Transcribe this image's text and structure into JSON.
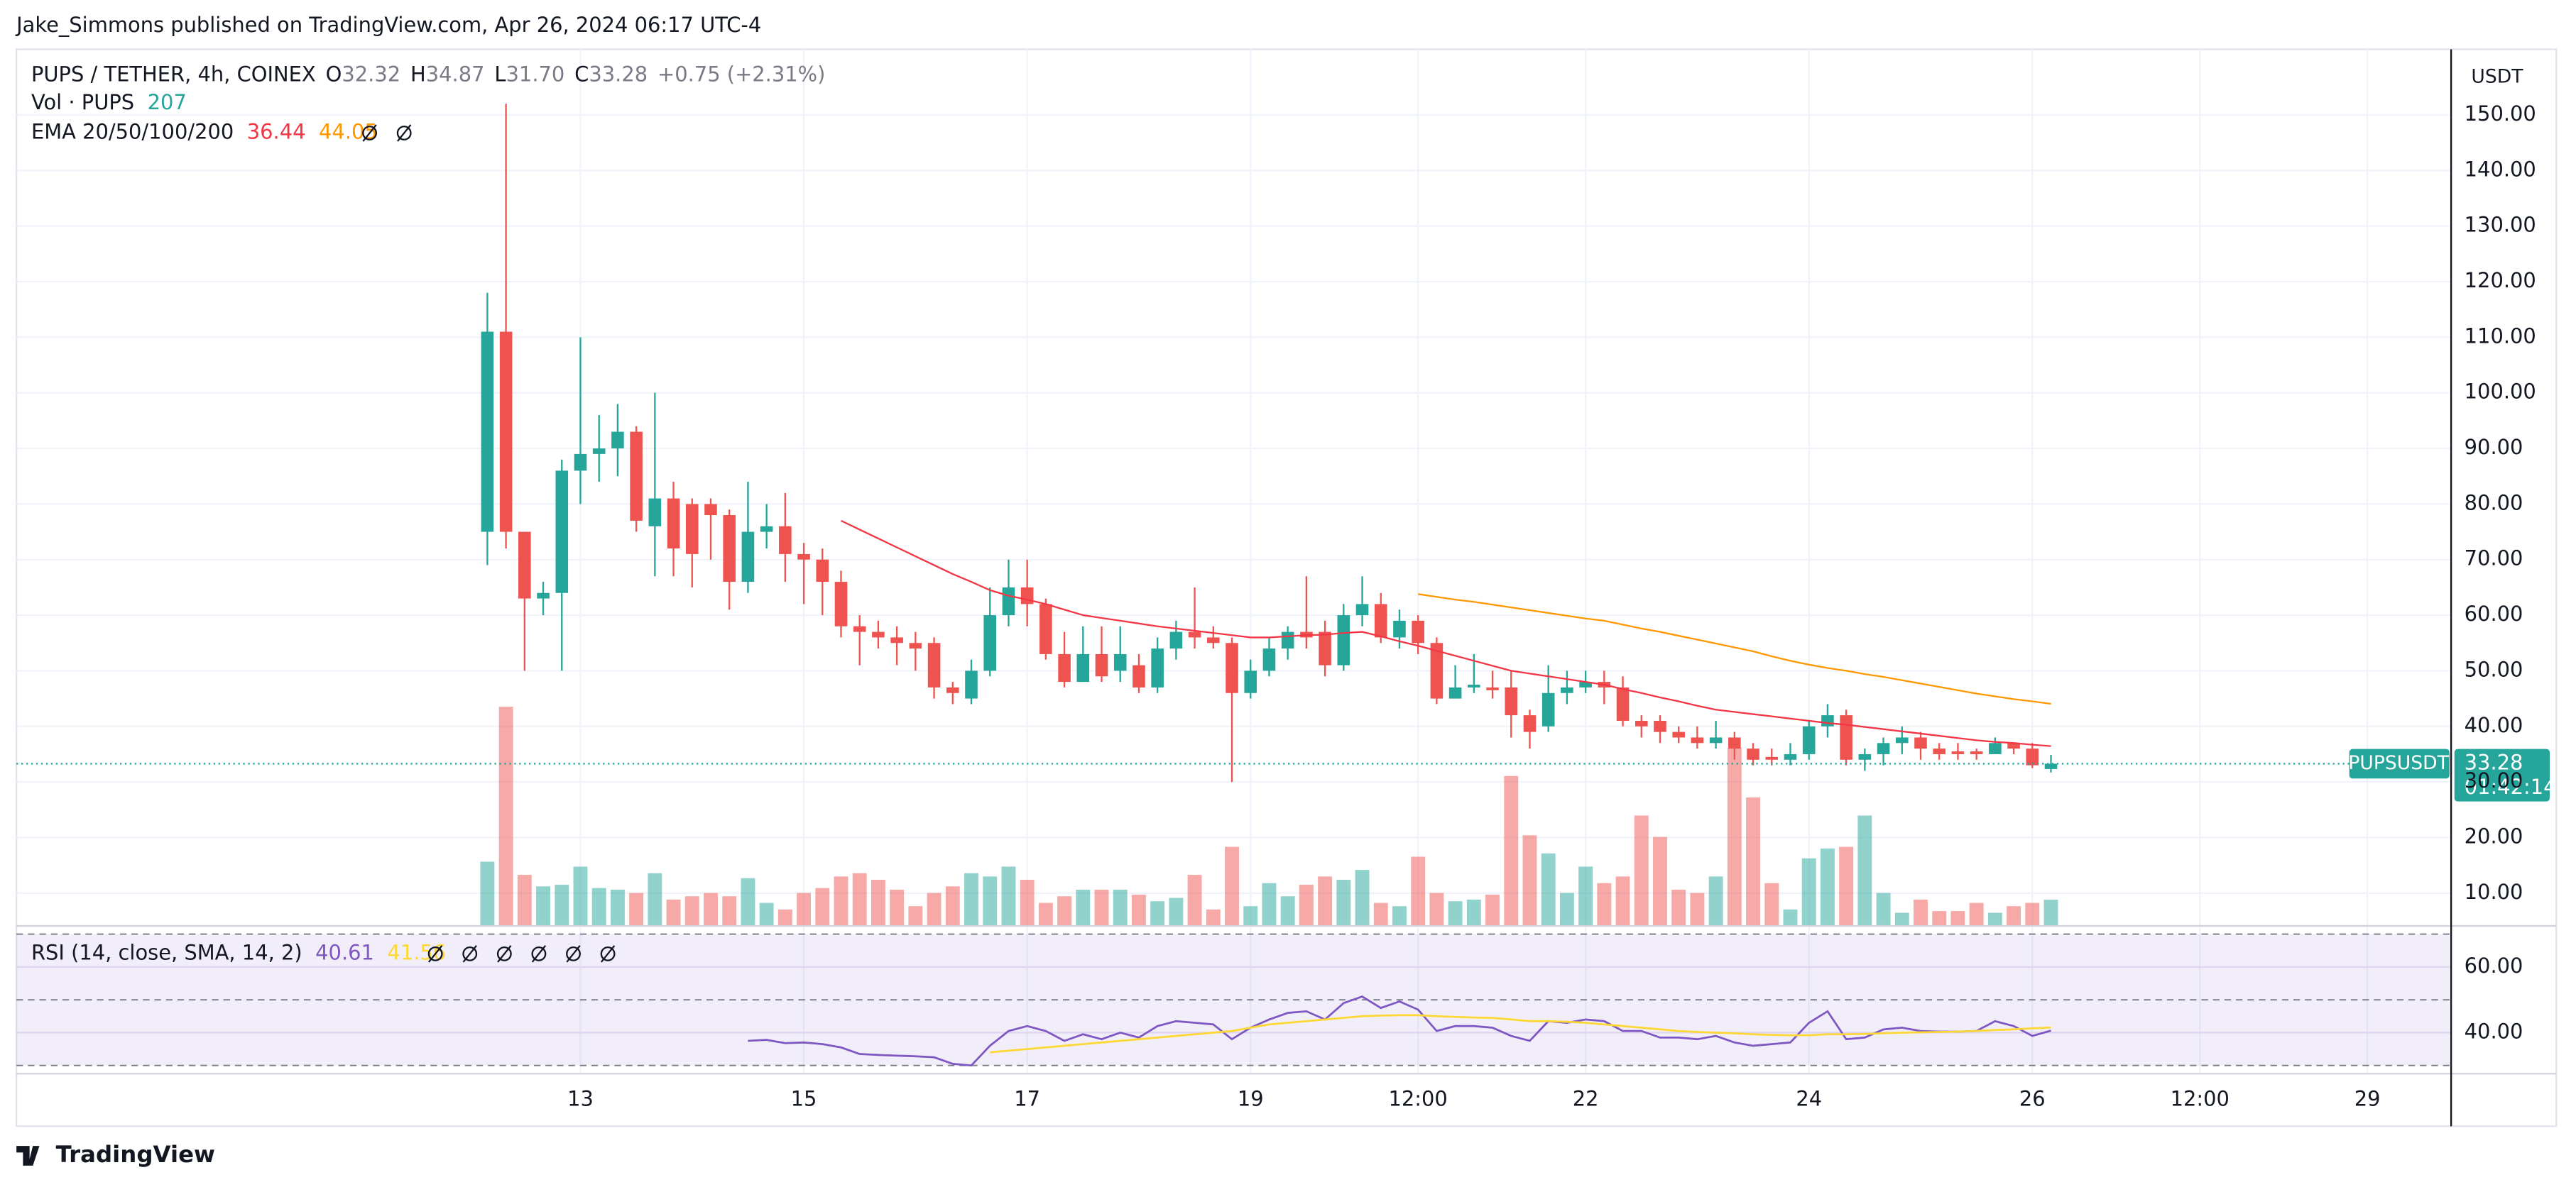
{
  "header": "Jake_Simmons published on TradingView.com, Apr 26, 2024 06:17 UTC-4",
  "footer": "TradingView",
  "chart_data": {
    "type": "candlestick",
    "title": "PUPS / TETHER, 4h, COINEX",
    "legend": {
      "o": "O",
      "open": "32.32",
      "h": "H",
      "high": "34.87",
      "l": "L",
      "low": "31.70",
      "c": "C",
      "close": "33.28",
      "change": "+0.75 (+2.31%)"
    },
    "currency": "USDT",
    "symbol": "PUPSUSDT",
    "countdown": "01:42:14",
    "up_color": "#26a69a",
    "down_color": "#ef5350",
    "open": [
      75,
      111,
      75,
      63,
      64,
      86,
      89,
      90,
      93,
      76,
      81,
      80,
      80,
      78,
      66,
      75,
      76,
      71,
      70,
      66,
      58,
      57,
      56,
      55,
      55,
      47,
      45,
      50,
      60,
      65,
      62,
      53,
      48,
      53,
      50,
      51,
      47,
      54,
      57,
      56,
      55,
      46,
      50,
      54,
      57,
      57,
      51,
      60,
      62,
      56,
      59,
      55,
      45,
      47,
      47,
      47,
      42,
      40,
      46,
      47,
      48,
      47,
      41,
      41,
      39,
      38,
      37,
      38,
      36,
      34.5,
      34,
      35,
      40,
      42,
      34,
      35,
      37,
      38,
      36,
      35.5,
      35.5,
      35,
      37,
      36,
      32.32
    ],
    "high": [
      118,
      152,
      75,
      66,
      88,
      110,
      96,
      98,
      94,
      100,
      84,
      81,
      81,
      79,
      84,
      80,
      82,
      73,
      72,
      68,
      60,
      59,
      58,
      57,
      56,
      48,
      52,
      65,
      70,
      70,
      63,
      57,
      58,
      58,
      58,
      53,
      56,
      59,
      65,
      58,
      56,
      52,
      56,
      58,
      67,
      59,
      62,
      67,
      64,
      61,
      60,
      56,
      51,
      53,
      50,
      50,
      43,
      51,
      50,
      50,
      50,
      49,
      42,
      42,
      40,
      40,
      41,
      39,
      37,
      36,
      37,
      41,
      44,
      43,
      36,
      38,
      40,
      39,
      37,
      37,
      36,
      38,
      37,
      37,
      34.87
    ],
    "low": [
      69,
      72,
      50,
      60,
      50,
      80,
      84,
      85,
      75,
      67,
      67,
      65,
      70,
      61,
      64,
      72,
      66,
      62,
      60,
      56,
      51,
      54,
      51,
      50,
      45,
      44,
      44,
      49,
      58,
      58,
      52,
      47,
      48,
      48,
      48,
      46,
      46,
      52,
      54,
      54,
      30,
      45,
      49,
      52,
      54,
      49,
      50,
      58,
      55,
      54,
      53,
      44,
      45,
      46,
      45,
      38,
      36,
      39,
      44,
      46,
      44,
      40,
      38,
      37,
      37,
      36,
      36,
      34,
      33,
      33,
      33,
      34,
      38,
      33,
      32,
      33,
      35,
      34,
      34,
      34,
      34,
      35,
      35,
      32.5,
      31.7
    ],
    "close": [
      111,
      75,
      63,
      64,
      86,
      89,
      90,
      93,
      77,
      81,
      72,
      71,
      78,
      66,
      75,
      76,
      71,
      70,
      66,
      58,
      57,
      56,
      55,
      54,
      47,
      46,
      50,
      60,
      65,
      62,
      53,
      48,
      53,
      49,
      53,
      47,
      54,
      57,
      56,
      55,
      46,
      50,
      54,
      57,
      56,
      51,
      60,
      62,
      56,
      59,
      55,
      45,
      47,
      47.5,
      46.5,
      42,
      39,
      46,
      47,
      48,
      47,
      41,
      40,
      39,
      38,
      37,
      38,
      36,
      34,
      34,
      35,
      40,
      42,
      34,
      35,
      37,
      38,
      36,
      35,
      35,
      35,
      37,
      36,
      33,
      33.28
    ],
    "volume": [
      507,
      1729,
      403,
      312,
      325,
      468,
      299,
      286,
      260,
      416,
      208,
      234,
      260,
      234,
      377,
      182,
      130,
      260,
      299,
      390,
      416,
      364,
      286,
      156,
      260,
      312,
      416,
      390,
      468,
      364,
      182,
      234,
      286,
      286,
      286,
      247,
      195,
      221,
      403,
      130,
      624,
      156,
      338,
      234,
      325,
      390,
      364,
      442,
      182,
      156,
      546,
      260,
      195,
      208,
      247,
      1183,
      715,
      572,
      260,
      468,
      338,
      390,
      871,
      702,
      286,
      260,
      390,
      1404,
      1014,
      338,
      130,
      533,
      611,
      624,
      871,
      260,
      104,
      208,
      117,
      117,
      182,
      104,
      156,
      182,
      207
    ],
    "volume_label": "Vol · PUPS",
    "ema": {
      "label": "EMA 20/50/100/200",
      "lines": [
        {
          "color": "#f23645",
          "values": [
            null,
            null,
            null,
            null,
            null,
            null,
            null,
            null,
            null,
            null,
            null,
            null,
            null,
            null,
            null,
            null,
            null,
            null,
            null,
            77,
            75.4,
            73.8,
            72.2,
            70.6,
            69,
            67.4,
            66,
            64.5,
            63.5,
            62.8,
            62,
            61,
            60,
            59.5,
            59,
            58.5,
            58,
            57.6,
            57.2,
            56.8,
            56.4,
            56,
            56,
            56.2,
            56.4,
            56.5,
            56.8,
            57,
            56.2,
            55.3,
            54.5,
            53.6,
            52.7,
            51.8,
            50.9,
            50,
            49.5,
            49,
            48.5,
            48,
            47.5,
            46.7,
            46,
            45.2,
            44.5,
            43.7,
            43,
            42.6,
            42.2,
            41.8,
            41.4,
            41,
            40.6,
            40.3,
            39.9,
            39.5,
            39.1,
            38.7,
            38.3,
            37.9,
            37.5,
            37.2,
            37,
            36.7,
            36.44
          ]
        },
        {
          "color": "#ff9800",
          "values": [
            null,
            null,
            null,
            null,
            null,
            null,
            null,
            null,
            null,
            null,
            null,
            null,
            null,
            null,
            null,
            null,
            null,
            null,
            null,
            null,
            null,
            null,
            null,
            null,
            null,
            null,
            null,
            null,
            null,
            null,
            null,
            null,
            null,
            null,
            null,
            null,
            null,
            null,
            null,
            null,
            null,
            null,
            null,
            null,
            null,
            null,
            null,
            null,
            null,
            null,
            63.8,
            63.3,
            62.8,
            62.4,
            61.9,
            61.4,
            60.9,
            60.4,
            59.9,
            59.4,
            59,
            58.3,
            57.6,
            57,
            56.3,
            55.6,
            54.9,
            54.2,
            53.5,
            52.6,
            51.8,
            51.1,
            50.5,
            50,
            49.4,
            48.9,
            48.3,
            47.7,
            47.1,
            46.5,
            45.9,
            45.4,
            44.9,
            44.5,
            44.05
          ]
        }
      ]
    },
    "xlim": [
      -25.3,
      105.5
    ],
    "xticks": [
      {
        "value": 5,
        "label": "13"
      },
      {
        "value": 17,
        "label": "15"
      },
      {
        "value": 29,
        "label": "17"
      },
      {
        "value": 41,
        "label": "19"
      },
      {
        "value": 50,
        "label": "12:00"
      },
      {
        "value": 59,
        "label": "22"
      },
      {
        "value": 71,
        "label": "24"
      },
      {
        "value": 83,
        "label": "26"
      },
      {
        "value": 92,
        "label": "12:00"
      },
      {
        "value": 101,
        "label": "29"
      }
    ],
    "ylim": [
      4.1,
      161.8
    ],
    "yticks": [
      {
        "value": 10,
        "label": "10.00"
      },
      {
        "value": 20,
        "label": "20.00"
      },
      {
        "value": 30,
        "label": "30.00"
      },
      {
        "value": 40,
        "label": "40.00"
      },
      {
        "value": 50,
        "label": "50.00"
      },
      {
        "value": 60,
        "label": "60.00"
      },
      {
        "value": 70,
        "label": "70.00"
      },
      {
        "value": 80,
        "label": "80.00"
      },
      {
        "value": 90,
        "label": "90.00"
      },
      {
        "value": 100,
        "label": "100.00"
      },
      {
        "value": 110,
        "label": "110.00"
      },
      {
        "value": 120,
        "label": "120.00"
      },
      {
        "value": 130,
        "label": "130.00"
      },
      {
        "value": 140,
        "label": "140.00"
      },
      {
        "value": 150,
        "label": "150.00"
      }
    ],
    "grid": true,
    "rsi": {
      "label": "RSI (14, close, SMA, 14, 2)",
      "ylim": [
        27.5,
        72.5
      ],
      "yticks": [
        {
          "value": 40,
          "label": "40.00"
        },
        {
          "value": 60,
          "label": "60.00"
        }
      ],
      "levels": [
        70,
        50,
        30
      ],
      "lines": [
        {
          "color": "#7e57c2",
          "values": [
            null,
            null,
            null,
            null,
            null,
            null,
            null,
            null,
            null,
            null,
            null,
            null,
            null,
            null,
            37.5,
            37.8,
            36.8,
            37,
            36.5,
            35.5,
            33.5,
            33.2,
            33,
            32.8,
            32.5,
            30.5,
            30,
            36,
            40.5,
            42,
            40.5,
            37.5,
            39.5,
            38,
            40,
            38.5,
            42,
            43.5,
            43,
            42.5,
            38,
            41.5,
            44,
            46,
            46.5,
            44,
            49,
            51,
            47.5,
            49.5,
            47,
            40.5,
            42,
            42,
            41.5,
            39,
            37.5,
            43.5,
            43,
            44,
            43.5,
            40.5,
            40.5,
            38.5,
            38.5,
            38,
            39,
            37,
            36,
            36.5,
            37,
            43,
            46.5,
            38,
            38.5,
            41,
            41.5,
            40.5,
            40.3,
            40.3,
            40.5,
            43.5,
            42,
            39,
            40.61
          ]
        },
        {
          "color": "#fdd835",
          "values": [
            null,
            null,
            null,
            null,
            null,
            null,
            null,
            null,
            null,
            null,
            null,
            null,
            null,
            null,
            null,
            null,
            null,
            null,
            null,
            null,
            null,
            null,
            null,
            null,
            null,
            null,
            null,
            34,
            34.5,
            35,
            35.5,
            36,
            36.5,
            37,
            37.5,
            38,
            38.5,
            39,
            39.5,
            40,
            40.5,
            41.5,
            42.5,
            43,
            43.5,
            44,
            44.5,
            45,
            45.2,
            45.3,
            45.3,
            45,
            44.8,
            44.6,
            44.5,
            44,
            43.5,
            43.5,
            43.3,
            43,
            42.5,
            42,
            41.5,
            41,
            40.5,
            40.2,
            40,
            39.8,
            39.5,
            39.3,
            39.2,
            39.2,
            39.5,
            39.5,
            39.6,
            39.8,
            40,
            40.1,
            40.2,
            40.3,
            40.5,
            40.8,
            41,
            41.3,
            41.56
          ]
        }
      ]
    }
  }
}
